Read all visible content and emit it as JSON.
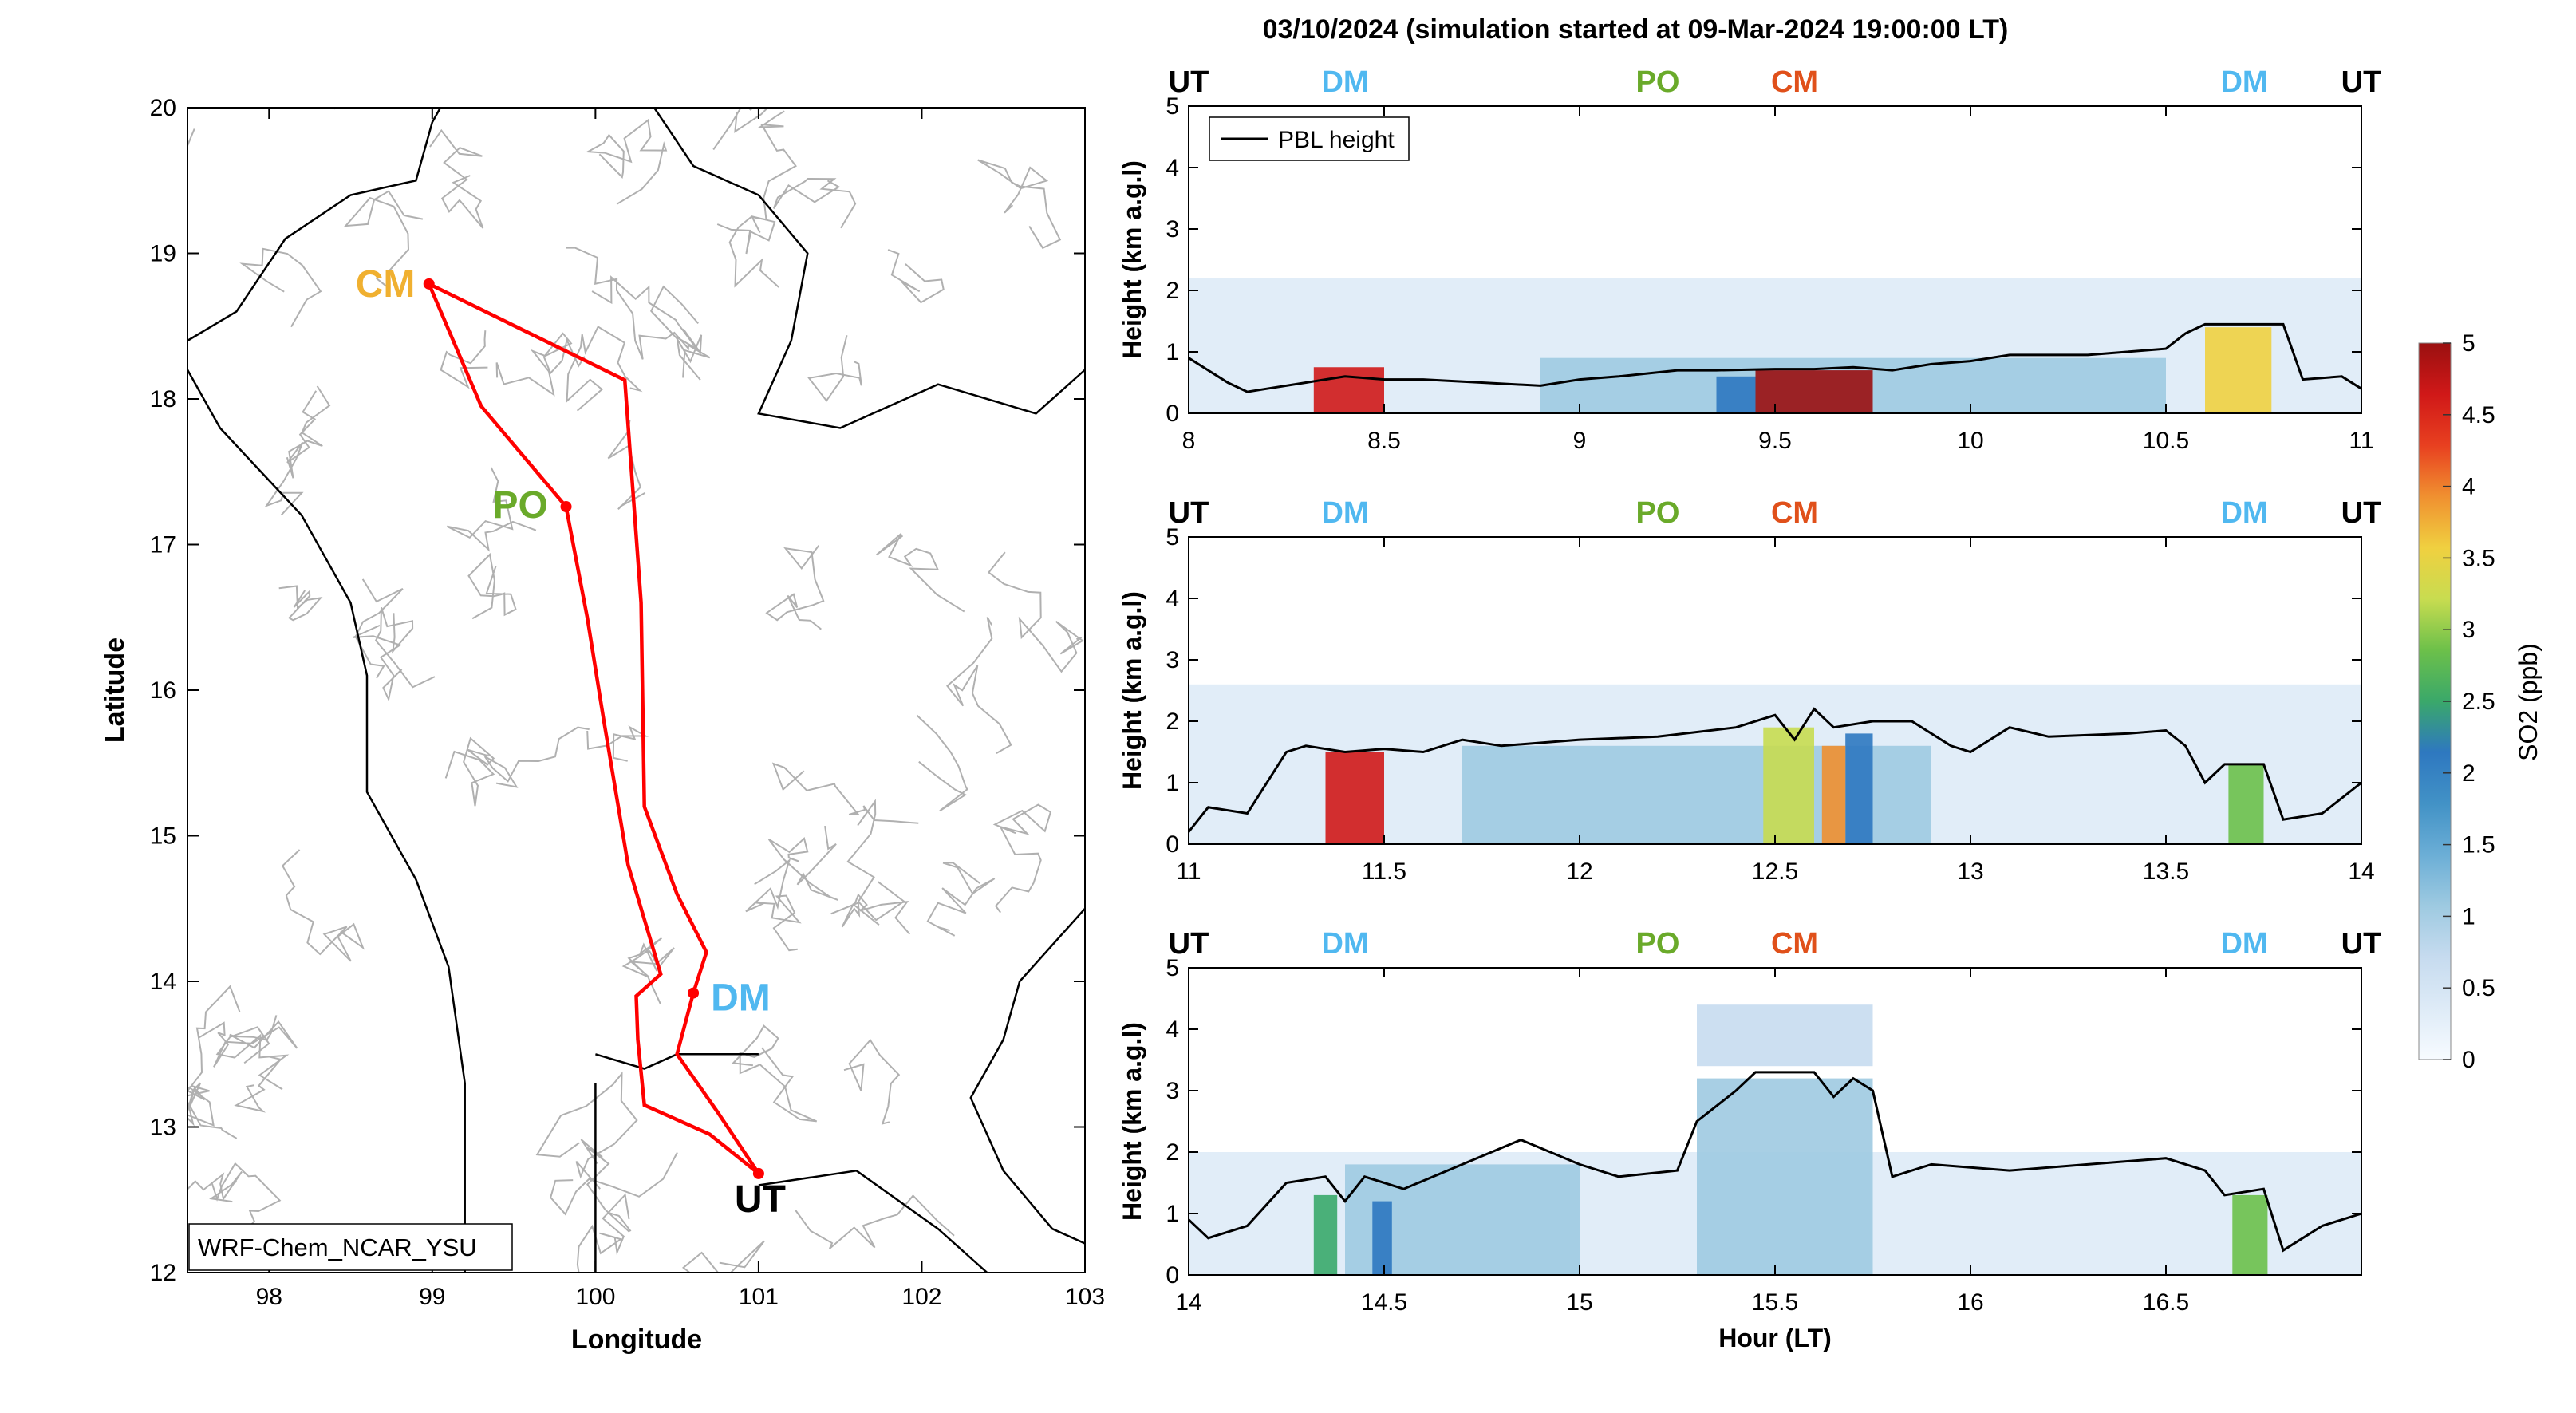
{
  "figure": {
    "title": "03/10/2024 (simulation started at 09-Mar-2024 19:00:00 LT)"
  },
  "colors": {
    "route": "#ff0000",
    "CM_map": "#f0b030",
    "PO": "#6aaa2a",
    "DM": "#50b8f0",
    "UT": "#000000",
    "CM_panel": "#e0501a",
    "pbl": "#000000",
    "colormap": [
      "#f7fbff",
      "#deebf7",
      "#c6dbef",
      "#9ecae1",
      "#6baed6",
      "#4292c6",
      "#2e78c0",
      "#3aa86a",
      "#6cc04a",
      "#c8dc50",
      "#f0d040",
      "#f09030",
      "#e84020",
      "#d01818",
      "#9a1010"
    ]
  },
  "chart_data": [
    {
      "type": "map",
      "xlabel": "Longitude",
      "ylabel": "Latitude",
      "xlim": [
        97.5,
        103
      ],
      "ylim": [
        12,
        20
      ],
      "xticks": [
        "98",
        "99",
        "100",
        "101",
        "102",
        "103"
      ],
      "yticks": [
        "12",
        "13",
        "14",
        "15",
        "16",
        "17",
        "18",
        "19",
        "20"
      ],
      "model_label": "WRF-Chem_NCAR_YSU",
      "sites": [
        {
          "code": "CM",
          "lon": 98.98,
          "lat": 18.79
        },
        {
          "code": "PO",
          "lon": 99.82,
          "lat": 17.26
        },
        {
          "code": "DM",
          "lon": 100.6,
          "lat": 13.92
        },
        {
          "code": "UT",
          "lon": 101.0,
          "lat": 12.68
        }
      ],
      "route": [
        [
          101.0,
          12.68
        ],
        [
          100.7,
          12.95
        ],
        [
          100.3,
          13.15
        ],
        [
          100.26,
          13.6
        ],
        [
          100.25,
          13.9
        ],
        [
          100.4,
          14.05
        ],
        [
          100.2,
          14.8
        ],
        [
          100.05,
          15.8
        ],
        [
          99.95,
          16.5
        ],
        [
          99.82,
          17.26
        ],
        [
          99.3,
          17.95
        ],
        [
          98.98,
          18.79
        ],
        [
          100.18,
          18.13
        ],
        [
          100.28,
          16.6
        ],
        [
          100.3,
          15.2
        ],
        [
          100.5,
          14.6
        ],
        [
          100.68,
          14.2
        ],
        [
          100.6,
          13.92
        ],
        [
          100.5,
          13.5
        ],
        [
          100.75,
          13.1
        ],
        [
          101.0,
          12.68
        ]
      ]
    },
    {
      "type": "heatmap",
      "ylabel": "Height (km a.g.l)",
      "xlim": [
        8,
        11
      ],
      "ylim": [
        0,
        5
      ],
      "xticks": [
        "8",
        "8.5",
        "9",
        "9.5",
        "10",
        "10.5",
        "11"
      ],
      "yticks": [
        "0",
        "1",
        "2",
        "3",
        "4",
        "5"
      ],
      "legend": "PBL height",
      "site_labels": [
        {
          "code": "UT",
          "hour": 8.0
        },
        {
          "code": "DM",
          "hour": 8.4
        },
        {
          "code": "PO",
          "hour": 9.2
        },
        {
          "code": "CM",
          "hour": 9.55
        },
        {
          "code": "DM",
          "hour": 10.7
        },
        {
          "code": "UT",
          "hour": 11.0
        }
      ],
      "pbl": [
        [
          8.0,
          0.9
        ],
        [
          8.05,
          0.7
        ],
        [
          8.1,
          0.5
        ],
        [
          8.15,
          0.35
        ],
        [
          8.2,
          0.4
        ],
        [
          8.3,
          0.5
        ],
        [
          8.35,
          0.55
        ],
        [
          8.4,
          0.6
        ],
        [
          8.5,
          0.55
        ],
        [
          8.6,
          0.55
        ],
        [
          8.75,
          0.5
        ],
        [
          8.9,
          0.45
        ],
        [
          9.0,
          0.55
        ],
        [
          9.1,
          0.6
        ],
        [
          9.25,
          0.7
        ],
        [
          9.35,
          0.7
        ],
        [
          9.5,
          0.72
        ],
        [
          9.6,
          0.72
        ],
        [
          9.7,
          0.75
        ],
        [
          9.8,
          0.7
        ],
        [
          9.9,
          0.8
        ],
        [
          10.0,
          0.85
        ],
        [
          10.1,
          0.95
        ],
        [
          10.2,
          0.95
        ],
        [
          10.3,
          0.95
        ],
        [
          10.4,
          1.0
        ],
        [
          10.5,
          1.05
        ],
        [
          10.55,
          1.3
        ],
        [
          10.6,
          1.45
        ],
        [
          10.7,
          1.45
        ],
        [
          10.8,
          1.45
        ],
        [
          10.85,
          0.55
        ],
        [
          10.95,
          0.6
        ],
        [
          11.0,
          0.4
        ]
      ],
      "blobs": [
        {
          "x0": 8.32,
          "x1": 8.5,
          "y0": 0,
          "y1": 0.75,
          "v": 4.5
        },
        {
          "x0": 9.35,
          "x1": 9.45,
          "y0": 0,
          "y1": 0.6,
          "v": 2.0
        },
        {
          "x0": 9.45,
          "x1": 9.75,
          "y0": 0,
          "y1": 0.7,
          "v": 5.0
        },
        {
          "x0": 10.6,
          "x1": 10.77,
          "y0": 0,
          "y1": 1.4,
          "v": 3.5
        },
        {
          "x0": 8.0,
          "x1": 11.0,
          "y0": 0,
          "y1": 2.2,
          "v": 0.4
        },
        {
          "x0": 8.9,
          "x1": 10.5,
          "y0": 0,
          "y1": 0.9,
          "v": 1.2
        }
      ]
    },
    {
      "type": "heatmap",
      "ylabel": "Height (km a.g.l)",
      "xlim": [
        11,
        14
      ],
      "ylim": [
        0,
        5
      ],
      "xticks": [
        "11",
        "11.5",
        "12",
        "12.5",
        "13",
        "13.5",
        "14"
      ],
      "yticks": [
        "0",
        "1",
        "2",
        "3",
        "4",
        "5"
      ],
      "site_labels": [
        {
          "code": "UT",
          "hour": 11.0
        },
        {
          "code": "DM",
          "hour": 11.4
        },
        {
          "code": "PO",
          "hour": 12.2
        },
        {
          "code": "CM",
          "hour": 12.55
        },
        {
          "code": "DM",
          "hour": 13.7
        },
        {
          "code": "UT",
          "hour": 14.0
        }
      ],
      "pbl": [
        [
          11.0,
          0.2
        ],
        [
          11.05,
          0.6
        ],
        [
          11.15,
          0.5
        ],
        [
          11.25,
          1.5
        ],
        [
          11.3,
          1.6
        ],
        [
          11.4,
          1.5
        ],
        [
          11.5,
          1.55
        ],
        [
          11.6,
          1.5
        ],
        [
          11.7,
          1.7
        ],
        [
          11.8,
          1.6
        ],
        [
          12.0,
          1.7
        ],
        [
          12.2,
          1.75
        ],
        [
          12.4,
          1.9
        ],
        [
          12.5,
          2.1
        ],
        [
          12.55,
          1.7
        ],
        [
          12.6,
          2.2
        ],
        [
          12.65,
          1.9
        ],
        [
          12.75,
          2.0
        ],
        [
          12.85,
          2.0
        ],
        [
          12.95,
          1.6
        ],
        [
          13.0,
          1.5
        ],
        [
          13.1,
          1.9
        ],
        [
          13.2,
          1.75
        ],
        [
          13.4,
          1.8
        ],
        [
          13.5,
          1.85
        ],
        [
          13.55,
          1.6
        ],
        [
          13.6,
          1.0
        ],
        [
          13.65,
          1.3
        ],
        [
          13.75,
          1.3
        ],
        [
          13.8,
          0.4
        ],
        [
          13.9,
          0.5
        ],
        [
          14.0,
          1.0
        ]
      ],
      "blobs": [
        {
          "x0": 11.0,
          "x1": 14.0,
          "y0": 0,
          "y1": 2.6,
          "v": 0.35
        },
        {
          "x0": 11.35,
          "x1": 11.5,
          "y0": 0,
          "y1": 1.5,
          "v": 4.5
        },
        {
          "x0": 11.7,
          "x1": 12.9,
          "y0": 0,
          "y1": 1.6,
          "v": 1.0
        },
        {
          "x0": 12.47,
          "x1": 12.6,
          "y0": 0,
          "y1": 1.9,
          "v": 3.2
        },
        {
          "x0": 12.62,
          "x1": 12.68,
          "y0": 0,
          "y1": 1.6,
          "v": 4.0
        },
        {
          "x0": 12.68,
          "x1": 12.75,
          "y0": 0,
          "y1": 1.8,
          "v": 2.2
        },
        {
          "x0": 13.66,
          "x1": 13.75,
          "y0": 0,
          "y1": 1.3,
          "v": 3.0
        }
      ]
    },
    {
      "type": "heatmap",
      "ylabel": "Height (km a.g.l)",
      "xlabel": "Hour (LT)",
      "xlim": [
        14,
        17
      ],
      "ylim": [
        0,
        5
      ],
      "xticks": [
        "14",
        "14.5",
        "15",
        "15.5",
        "16",
        "16.5"
      ],
      "yticks": [
        "0",
        "1",
        "2",
        "3",
        "4",
        "5"
      ],
      "site_labels": [
        {
          "code": "UT",
          "hour": 14.0
        },
        {
          "code": "DM",
          "hour": 14.4
        },
        {
          "code": "PO",
          "hour": 15.2
        },
        {
          "code": "CM",
          "hour": 15.55
        },
        {
          "code": "DM",
          "hour": 16.7
        },
        {
          "code": "UT",
          "hour": 17.0
        }
      ],
      "pbl": [
        [
          14.0,
          0.9
        ],
        [
          14.05,
          0.6
        ],
        [
          14.15,
          0.8
        ],
        [
          14.25,
          1.5
        ],
        [
          14.35,
          1.6
        ],
        [
          14.4,
          1.2
        ],
        [
          14.45,
          1.6
        ],
        [
          14.55,
          1.4
        ],
        [
          14.7,
          1.8
        ],
        [
          14.85,
          2.2
        ],
        [
          15.0,
          1.8
        ],
        [
          15.1,
          1.6
        ],
        [
          15.25,
          1.7
        ],
        [
          15.3,
          2.5
        ],
        [
          15.4,
          3.0
        ],
        [
          15.45,
          3.3
        ],
        [
          15.6,
          3.3
        ],
        [
          15.65,
          2.9
        ],
        [
          15.7,
          3.2
        ],
        [
          15.75,
          3.0
        ],
        [
          15.8,
          1.6
        ],
        [
          15.9,
          1.8
        ],
        [
          16.1,
          1.7
        ],
        [
          16.3,
          1.8
        ],
        [
          16.5,
          1.9
        ],
        [
          16.6,
          1.7
        ],
        [
          16.65,
          1.3
        ],
        [
          16.75,
          1.4
        ],
        [
          16.8,
          0.4
        ],
        [
          16.9,
          0.8
        ],
        [
          17.0,
          1.0
        ]
      ],
      "blobs": [
        {
          "x0": 14.0,
          "x1": 17.0,
          "y0": 0,
          "y1": 2.0,
          "v": 0.35
        },
        {
          "x0": 14.4,
          "x1": 15.0,
          "y0": 0,
          "y1": 1.8,
          "v": 0.9
        },
        {
          "x0": 15.3,
          "x1": 15.75,
          "y0": 0,
          "y1": 3.2,
          "v": 1.2
        },
        {
          "x0": 15.3,
          "x1": 15.75,
          "y0": 3.4,
          "y1": 4.4,
          "v": 0.7
        },
        {
          "x0": 14.32,
          "x1": 14.38,
          "y0": 0,
          "y1": 1.3,
          "v": 2.5
        },
        {
          "x0": 14.47,
          "x1": 14.52,
          "y0": 0,
          "y1": 1.2,
          "v": 2.0
        },
        {
          "x0": 16.67,
          "x1": 16.76,
          "y0": 0,
          "y1": 1.3,
          "v": 3.0
        }
      ]
    }
  ],
  "colorbar": {
    "label": "SO2 (ppb)",
    "min": 0,
    "max": 5,
    "ticks": [
      "0",
      "0.5",
      "1",
      "1.5",
      "2",
      "2.5",
      "3",
      "3.5",
      "4",
      "4.5",
      "5"
    ]
  }
}
